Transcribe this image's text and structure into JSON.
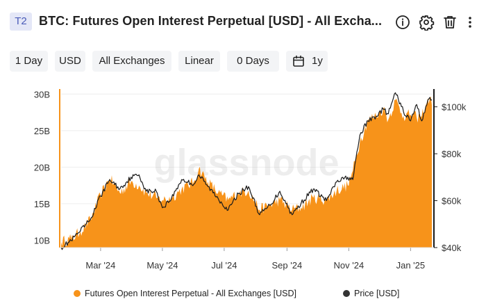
{
  "header": {
    "badge": "T2",
    "title": "BTC: Futures Open Interest Perpetual [USD] - All Excha..."
  },
  "icons": [
    "info-icon",
    "gear-icon",
    "trash-icon",
    "more-vertical-icon"
  ],
  "toolbar": {
    "resolution": "1 Day",
    "currency": "USD",
    "exchange": "All Exchanges",
    "scale": "Linear",
    "moving_average": "0 Days",
    "range": "1y"
  },
  "watermark": "glassnode",
  "colors": {
    "area": "#f7931a",
    "price": "#1a1a1a",
    "grid": "#eeeeee"
  },
  "chart_data": {
    "type": "area",
    "title": "BTC: Futures Open Interest Perpetual [USD] - All Excha...",
    "x_ticks": [
      "Mar '24",
      "May '24",
      "Jul '24",
      "Sep '24",
      "Nov '24",
      "Jan '25"
    ],
    "x_tick_dates": [
      "2024-03-01",
      "2024-05-01",
      "2024-07-01",
      "2024-09-01",
      "2024-11-01",
      "2025-01-01"
    ],
    "xlim": [
      "2024-01-22",
      "2025-01-22"
    ],
    "y_left_ticks": [
      "10B",
      "15B",
      "20B",
      "25B",
      "30B"
    ],
    "y_left_values": [
      10,
      15,
      20,
      25,
      30
    ],
    "ylim_left": [
      9,
      30.5
    ],
    "y_right_ticks": [
      "$40k",
      "$60k",
      "$80k",
      "$100k"
    ],
    "y_right_values": [
      40,
      60,
      80,
      100
    ],
    "ylim_right": [
      40,
      107
    ],
    "grid": true,
    "legend_position": "bottom",
    "series": [
      {
        "name": "Futures Open Interest Perpetual - All Exchanges [USD]",
        "axis": "left",
        "unit": "USD billions",
        "points": [
          [
            "2024-01-22",
            9.8
          ],
          [
            "2024-02-01",
            10.2
          ],
          [
            "2024-02-10",
            11.2
          ],
          [
            "2024-02-20",
            12.8
          ],
          [
            "2024-03-01",
            16.2
          ],
          [
            "2024-03-10",
            18.5
          ],
          [
            "2024-03-20",
            16.5
          ],
          [
            "2024-03-31",
            18.0
          ],
          [
            "2024-04-08",
            17.5
          ],
          [
            "2024-04-15",
            16.5
          ],
          [
            "2024-04-25",
            15.8
          ],
          [
            "2024-05-01",
            15.5
          ],
          [
            "2024-05-10",
            15.8
          ],
          [
            "2024-05-20",
            17.0
          ],
          [
            "2024-06-01",
            18.0
          ],
          [
            "2024-06-06",
            19.8
          ],
          [
            "2024-06-15",
            18.0
          ],
          [
            "2024-06-25",
            16.5
          ],
          [
            "2024-07-05",
            15.5
          ],
          [
            "2024-07-15",
            16.5
          ],
          [
            "2024-07-25",
            16.8
          ],
          [
            "2024-08-05",
            14.2
          ],
          [
            "2024-08-15",
            14.8
          ],
          [
            "2024-08-25",
            15.5
          ],
          [
            "2024-09-06",
            14.2
          ],
          [
            "2024-09-15",
            14.5
          ],
          [
            "2024-09-27",
            15.8
          ],
          [
            "2024-10-10",
            15.5
          ],
          [
            "2024-10-20",
            16.8
          ],
          [
            "2024-10-31",
            17.5
          ],
          [
            "2024-11-05",
            19.5
          ],
          [
            "2024-11-12",
            23.5
          ],
          [
            "2024-11-20",
            26.5
          ],
          [
            "2024-11-28",
            27.0
          ],
          [
            "2024-12-05",
            28.0
          ],
          [
            "2024-12-10",
            26.5
          ],
          [
            "2024-12-17",
            29.2
          ],
          [
            "2024-12-25",
            27.0
          ],
          [
            "2025-01-01",
            27.2
          ],
          [
            "2025-01-07",
            26.8
          ],
          [
            "2025-01-12",
            27.0
          ],
          [
            "2025-01-16",
            28.5
          ],
          [
            "2025-01-20",
            29.5
          ],
          [
            "2025-01-22",
            28.5
          ]
        ]
      },
      {
        "name": "Price [USD]",
        "axis": "right",
        "unit": "USD thousands",
        "points": [
          [
            "2024-01-22",
            40
          ],
          [
            "2024-02-01",
            43
          ],
          [
            "2024-02-10",
            47
          ],
          [
            "2024-02-20",
            52
          ],
          [
            "2024-03-01",
            62
          ],
          [
            "2024-03-10",
            69
          ],
          [
            "2024-03-20",
            65
          ],
          [
            "2024-03-31",
            70
          ],
          [
            "2024-04-08",
            71
          ],
          [
            "2024-04-15",
            64
          ],
          [
            "2024-04-25",
            64
          ],
          [
            "2024-05-01",
            57
          ],
          [
            "2024-05-10",
            61
          ],
          [
            "2024-05-20",
            69
          ],
          [
            "2024-06-01",
            67
          ],
          [
            "2024-06-06",
            71
          ],
          [
            "2024-06-15",
            66
          ],
          [
            "2024-06-25",
            61
          ],
          [
            "2024-07-05",
            56
          ],
          [
            "2024-07-15",
            63
          ],
          [
            "2024-07-25",
            66
          ],
          [
            "2024-08-05",
            54
          ],
          [
            "2024-08-15",
            58
          ],
          [
            "2024-08-25",
            64
          ],
          [
            "2024-09-06",
            54
          ],
          [
            "2024-09-15",
            59
          ],
          [
            "2024-09-27",
            65
          ],
          [
            "2024-10-10",
            60
          ],
          [
            "2024-10-20",
            68
          ],
          [
            "2024-10-31",
            70
          ],
          [
            "2024-11-05",
            69
          ],
          [
            "2024-11-12",
            88
          ],
          [
            "2024-11-20",
            94
          ],
          [
            "2024-11-28",
            96
          ],
          [
            "2024-12-05",
            99
          ],
          [
            "2024-12-10",
            97
          ],
          [
            "2024-12-17",
            106
          ],
          [
            "2024-12-25",
            98
          ],
          [
            "2025-01-01",
            94
          ],
          [
            "2025-01-07",
            101
          ],
          [
            "2025-01-12",
            94
          ],
          [
            "2025-01-16",
            100
          ],
          [
            "2025-01-20",
            104
          ],
          [
            "2025-01-22",
            103
          ]
        ]
      }
    ]
  }
}
